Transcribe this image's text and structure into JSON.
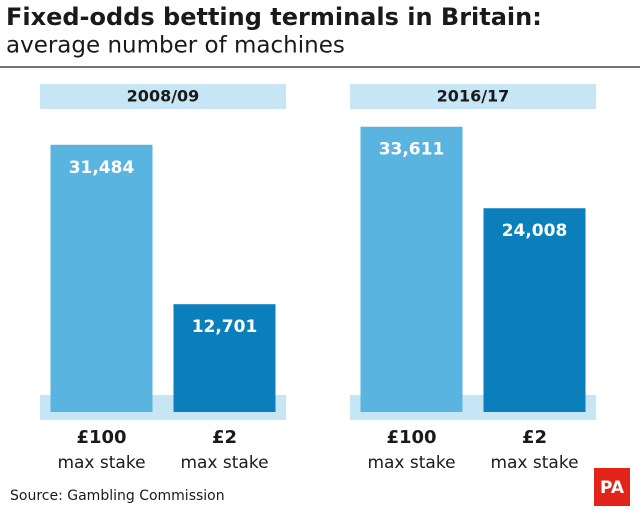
{
  "title": "Fixed-odds betting terminals in Britain:",
  "subtitle": "average number of machines",
  "source": "Source: Gambling Commission",
  "logo": "PA",
  "chart_data": [
    {
      "type": "bar",
      "title": "2008/09",
      "categories": [
        "£100",
        "£2"
      ],
      "category_caption": "max stake",
      "values": [
        31484,
        12701
      ],
      "value_labels": [
        "31,484",
        "12,701"
      ],
      "colors": [
        "#5ab4e0",
        "#0b7fbc"
      ],
      "ylim": [
        0,
        39000
      ]
    },
    {
      "type": "bar",
      "title": "2016/17",
      "categories": [
        "£100",
        "£2"
      ],
      "category_caption": "max stake",
      "values": [
        33611,
        24008
      ],
      "value_labels": [
        "33,611",
        "24,008"
      ],
      "colors": [
        "#5ab4e0",
        "#0b7fbc"
      ],
      "ylim": [
        0,
        39000
      ]
    }
  ]
}
